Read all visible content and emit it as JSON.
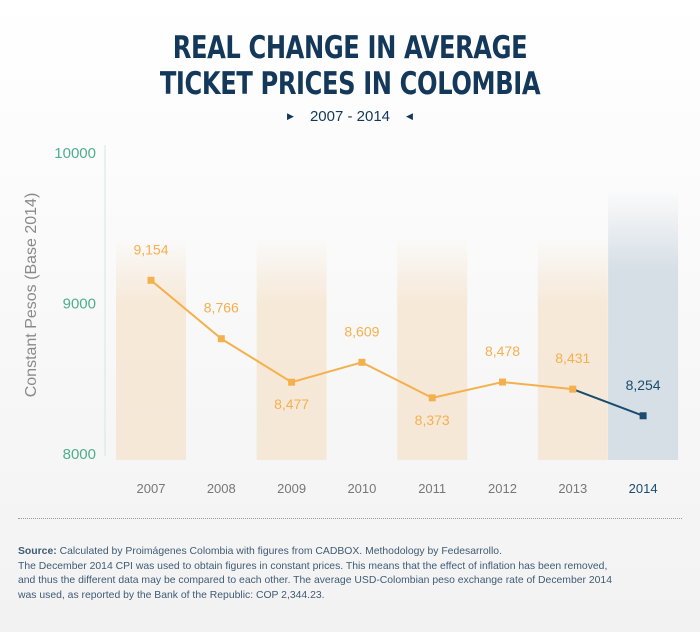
{
  "title_lines": [
    "REAL CHANGE IN AVERAGE",
    "TICKET PRICES IN COLOMBIA"
  ],
  "subtitle": "2007 - 2014",
  "notes": {
    "source_label": "Source:",
    "source_text": "Calculated by Proimágenes Colombia with figures from CADBOX. Methodology by Fedesarrollo.",
    "line2": "The December 2014 CPI was used to obtain figures in constant prices. This means that the effect of inflation has been removed,",
    "line3": "and thus the different data may be compared to each other. The average USD-Colombian peso exchange rate of December 2014",
    "line4": "was used, as reported by the Bank of the Republic: COP 2,344.23."
  },
  "colors": {
    "title": "#14385a",
    "series_main": "#f5b04e",
    "series_highlight": "#1a4c6e",
    "band_main": "#f6e7d4",
    "band_highlight": "#d6dfe6",
    "axis_tick": "#4fae8e",
    "axis_label": "#8a8a8a"
  },
  "chart_data": {
    "type": "line",
    "title": "REAL CHANGE IN AVERAGE TICKET PRICES IN COLOMBIA",
    "subtitle": "2007 - 2014",
    "xlabel": "",
    "ylabel": "Constant Pesos (Base 2014)",
    "x": [
      "2007",
      "2008",
      "2009",
      "2010",
      "2011",
      "2012",
      "2013",
      "2014"
    ],
    "values": [
      9154,
      8766,
      8477,
      8609,
      8373,
      8478,
      8431,
      8254
    ],
    "data_labels": [
      "9,154",
      "8,766",
      "8,477",
      "8,609",
      "8,373",
      "8,478",
      "8,431",
      "8,254"
    ],
    "yticks": [
      "10000",
      "9000",
      "8000"
    ],
    "ylim": [
      8000,
      10000
    ],
    "highlight_category": "2014",
    "grid": false,
    "legend": "none"
  }
}
